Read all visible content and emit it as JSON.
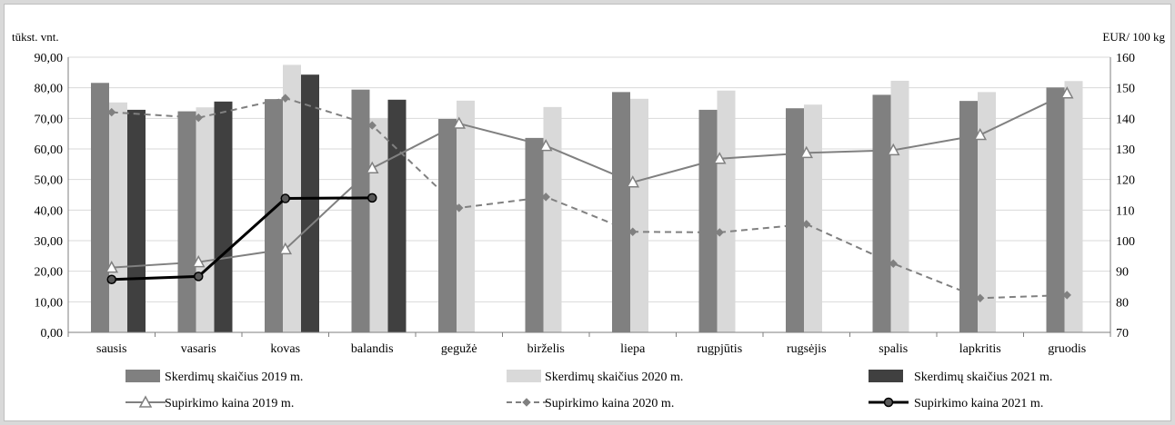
{
  "chart_data": {
    "type": "bar",
    "combo": "bar+line",
    "y_left_label": "tūkst. vnt.",
    "y_right_label": "EUR/ 100 kg",
    "ylim_left": [
      0,
      90
    ],
    "ylim_right": [
      70,
      160
    ],
    "y_left_ticks": [
      "0,00",
      "10,00",
      "20,00",
      "30,00",
      "40,00",
      "50,00",
      "60,00",
      "70,00",
      "80,00",
      "90,00"
    ],
    "y_right_ticks": [
      "70",
      "80",
      "90",
      "100",
      "110",
      "120",
      "130",
      "140",
      "150",
      "160"
    ],
    "grid": true,
    "legend_position": "bottom",
    "categories": [
      "sausis",
      "vasaris",
      "kovas",
      "balandis",
      "gegužė",
      "birželis",
      "liepa",
      "rugpjūtis",
      "rugsėjis",
      "spalis",
      "lapkritis",
      "gruodis"
    ],
    "bar_series": [
      {
        "name": "Skerdimų skaičius 2019 m.",
        "color": "#808080",
        "values": [
          81.6,
          72.3,
          76.3,
          79.4,
          69.8,
          63.6,
          78.6,
          72.8,
          73.3,
          77.7,
          75.7,
          80.1
        ]
      },
      {
        "name": "Skerdimų skaičius 2020 m.",
        "color": "#d9d9d9",
        "values": [
          75.2,
          73.6,
          87.5,
          70.0,
          75.8,
          73.7,
          76.4,
          79.1,
          74.5,
          82.3,
          78.6,
          82.2
        ]
      },
      {
        "name": "Skerdimų skaičius 2021 m.",
        "color": "#404040",
        "values": [
          72.8,
          75.5,
          84.3,
          76.1,
          null,
          null,
          null,
          null,
          null,
          null,
          null,
          null
        ]
      }
    ],
    "line_series": [
      {
        "name": "Supirkimo kaina 2019 m.",
        "color": "#808080",
        "style": "solid",
        "marker": "triangle",
        "values": [
          91.2,
          93.0,
          97.2,
          123.7,
          138.3,
          131.0,
          119.1,
          126.8,
          128.7,
          129.6,
          134.6,
          148.2
        ]
      },
      {
        "name": "Supirkimo kaina 2020 m.",
        "color": "#808080",
        "style": "dashed",
        "marker": "diamond",
        "values": [
          142.0,
          140.2,
          146.6,
          137.7,
          110.7,
          114.3,
          102.9,
          102.7,
          105.4,
          92.5,
          81.2,
          82.2
        ]
      },
      {
        "name": "Supirkimo kaina 2021 m.",
        "color": "#262626",
        "style": "solid",
        "marker": "circle",
        "values": [
          87.3,
          88.3,
          113.8,
          114.0,
          null,
          null,
          null,
          null,
          null,
          null,
          null,
          null
        ]
      }
    ]
  }
}
